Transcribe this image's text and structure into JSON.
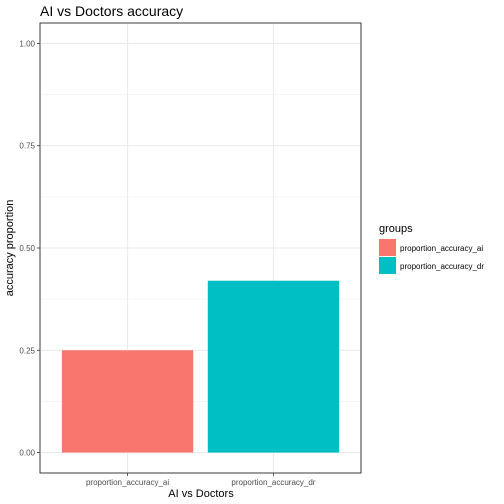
{
  "chart_data": {
    "type": "bar",
    "title": "AI vs Doctors accuracy",
    "xlabel": "AI vs Doctors",
    "ylabel": "accuracy proportion",
    "categories": [
      "proportion_accuracy_ai",
      "proportion_accuracy_dr"
    ],
    "values": [
      0.25,
      0.42
    ],
    "colors": [
      "#F8766D",
      "#00BFC4"
    ],
    "ylim": [
      0,
      1
    ],
    "yticks": [
      0.0,
      0.25,
      0.5,
      0.75,
      1.0
    ],
    "ytick_labels": [
      "0.00",
      "0.25",
      "0.50",
      "0.75",
      "1.00"
    ],
    "grid": true,
    "legend": {
      "title": "groups",
      "position": "right",
      "entries": [
        "proportion_accuracy_ai",
        "proportion_accuracy_dr"
      ]
    }
  }
}
